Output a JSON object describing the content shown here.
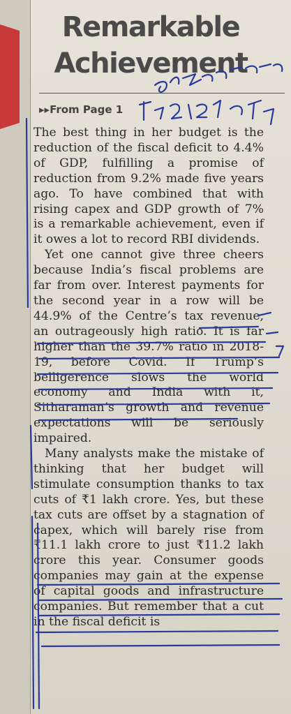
{
  "article": {
    "headline_line1": "Remarkable",
    "headline_line2": "Achievement",
    "from_page": "From Page 1",
    "paragraphs": [
      "The best thing in her budget is the reduction of the fiscal deficit to 4.4% of GDP, fulfilling a promise of reduction from 9.2% made five years ago. To have combined that with rising capex and GDP growth of 7% is a remarkable achievement, even if it owes a lot to record RBI dividends.",
      "Yet one cannot give three cheers because India’s fiscal problems are far from over. Interest payments for the second year in a row will be 44.9% of the Centre’s tax revenue, an outrageously high ratio. It is far higher than the 39.7% ratio in 2018-19, before Covid. If Trump’s belligerence slows the world economy and India with it, Sitharaman’s growth and revenue expectations will be seriously impaired.",
      "Many analysts make the mistake of thinking that her budget will stimulate consumption thanks to tax cuts of ₹1 lakh crore. Yes, but these tax cuts are offset by a stagnation of capex, which will barely rise from ₹11.1 lakh crore to just ₹11.2 lakh crore this year. Consumer goods companies may gain at the expense of capital goods and infrastructure companies. But remember that a cut in the fiscal deficit is"
    ]
  },
  "colors": {
    "ink": "#2b2b2b",
    "headline": "#4a4a4a",
    "pen": "#2a3a9c",
    "red_margin": "#c8393a"
  }
}
